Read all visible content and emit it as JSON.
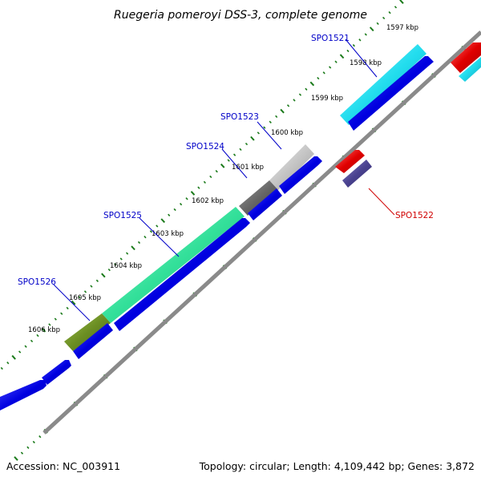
{
  "title": "Ruegeria pomeroyi DSS-3, complete genome",
  "footer": {
    "accession": "Accession: NC_003911",
    "summary": "Topology: circular; Length: 4,109,442 bp; Genes: 3,872"
  },
  "colors": {
    "backbone": "#8a8a8a",
    "ticks": "#1a7a1a",
    "forward_genes": "#0000e0",
    "reverse_genes": "#e00000",
    "label_forward": "#0000c8",
    "label_reverse": "#d00000"
  },
  "ticks": [
    {
      "label": "1597 kbp"
    },
    {
      "label": "1598 kbp"
    },
    {
      "label": "1599 kbp"
    },
    {
      "label": "1600 kbp"
    },
    {
      "label": "1601 kbp"
    },
    {
      "label": "1602 kbp"
    },
    {
      "label": "1603 kbp"
    },
    {
      "label": "1604 kbp"
    },
    {
      "label": "1605 kbp"
    },
    {
      "label": "1606 kbp"
    }
  ],
  "gene_labels": [
    {
      "name": "SPO1521",
      "strand": "forward"
    },
    {
      "name": "SPO1523",
      "strand": "forward"
    },
    {
      "name": "SPO1524",
      "strand": "forward"
    },
    {
      "name": "SPO1525",
      "strand": "forward"
    },
    {
      "name": "SPO1526",
      "strand": "forward"
    },
    {
      "name": "SPO1522",
      "strand": "reverse"
    }
  ],
  "cog_blocks": [
    {
      "gene": "SPO1521",
      "color": "#22ddee"
    },
    {
      "gene": "SPO1523",
      "color": "#c4c4c4"
    },
    {
      "gene": "SPO1524",
      "color": "#666666"
    },
    {
      "gene": "SPO1525",
      "color": "#33e09a"
    },
    {
      "gene": "SPO1526",
      "color": "#6b8e23"
    },
    {
      "gene": "SPO1522",
      "color": "#e82222"
    }
  ]
}
